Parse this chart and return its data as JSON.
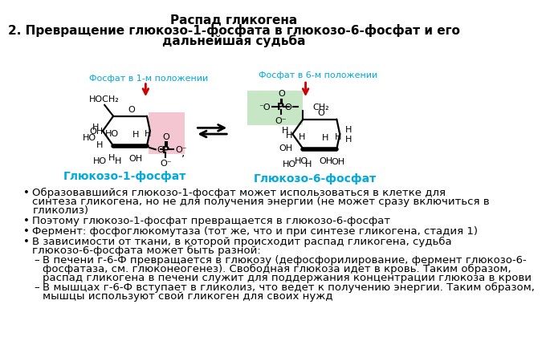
{
  "title_line1": "Распад гликогена",
  "title_line2": "2. Превращение глюкозо-1-фосфата в глюкозо-6-фосфат и его",
  "title_line3": "дальнейшая судьба",
  "label_g1p": "Глюкозо-1-фосфат",
  "label_g6p": "Глюкозо-6-фосфат",
  "label_phosphate1": "Фосфат в 1-м положении",
  "label_phosphate6": "Фосфат в 6-м положении",
  "bullet1": "Образовавшийся глюкозо-1-фосфат может использоваться в клетке для синтеза гликогена, но не для получения энергии (не может сразу включиться в гликолиз)",
  "bullet1_lines": [
    "Образовавшийся глюкозо-1-фосфат может использоваться в клетке для",
    "синтеза гликогена, но не для получения энергии (не может сразу включиться в",
    "гликолиз)"
  ],
  "bullet2_lines": [
    "Поэтому глюкозо-1-фосфат превращается в глюкозо-6-фосфат"
  ],
  "bullet3_lines": [
    "Фермент: фосфоглюкомутаза (тот же, что и при синтезе гликогена, стадия 1)"
  ],
  "bullet4_lines": [
    "В зависимости от ткани, в которой происходит распад гликогена, судьба",
    "глюкозо-6-фосфата может быть разной:"
  ],
  "sub1_lines": [
    "В печени г-6-Ф превращается в глюкозу (дефосфорилирование, фермент глюкозо-6-",
    "фосфатаза, см. глюконеогенез). Свободная глюкоза идет в кровь. Таким образом,",
    "распад гликогена в печени служит для поддержания концентрации глюкоза в крови"
  ],
  "sub2_lines": [
    "В мышцах г-6-Ф вступает в гликолиз, что ведет к получению энергии. Таким образом,",
    "мышцы используют свой гликоген для своих нужд"
  ],
  "cyan_color": "#00AADD",
  "red_color": "#CC0000",
  "pink_bg": "#F2B8C6",
  "green_bg": "#B8E0B8",
  "text_color": "#000000",
  "bg_color": "#FFFFFF"
}
